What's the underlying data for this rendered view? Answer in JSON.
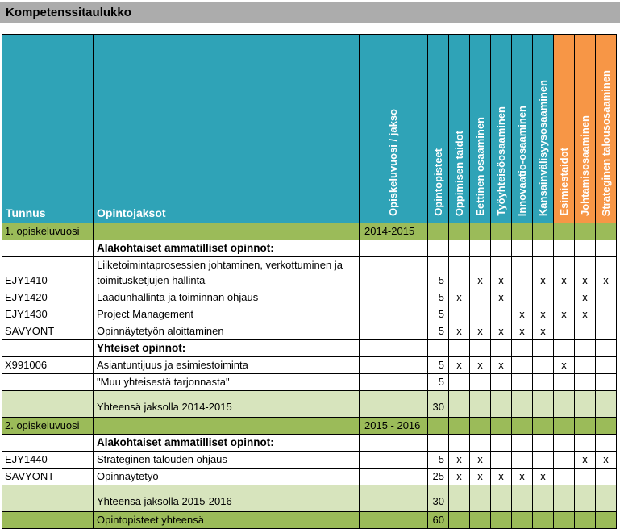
{
  "title": "Kompetenssitaulukko",
  "colors": {
    "header_teal": "#2fa3b7",
    "header_orange": "#f79646",
    "section_olive_green": "#9bbb59",
    "total_light_green": "#d7e4bd",
    "title_bar_gray": "#acacac",
    "grid_black": "#000000",
    "header_text_white": "#ffffff",
    "body_text_black": "#000000"
  },
  "table": {
    "corner_headers": [
      {
        "label": "Tunnus"
      },
      {
        "label": "Opintojaksot"
      }
    ],
    "rotated_headers": [
      {
        "label": "Opiskeluvuosi / jakso",
        "group": "teal"
      },
      {
        "label": "Opintopisteet",
        "group": "teal"
      },
      {
        "label": "Oppimisen taidot",
        "group": "teal"
      },
      {
        "label": "Eettinen osaaminen",
        "group": "teal"
      },
      {
        "label": "Työyhteisöosaaminen",
        "group": "teal"
      },
      {
        "label": "Innovaatio-osaaminen",
        "group": "teal"
      },
      {
        "label": "Kansainvälisyysosaaminen",
        "group": "teal"
      },
      {
        "label": "Esimiestaidot",
        "group": "orange"
      },
      {
        "label": "Johtamisosaaminen",
        "group": "orange"
      },
      {
        "label": "Strateginen talousosaaminen",
        "group": "orange"
      }
    ],
    "rows": [
      {
        "type": "section",
        "tunnus": "1. opiskeluvuosi",
        "name": "",
        "period": "2014-2015",
        "points": "",
        "marks": [
          "",
          "",
          "",
          "",
          "",
          "",
          "",
          ""
        ]
      },
      {
        "type": "subheader",
        "tunnus": "",
        "name": "Alakohtaiset ammatilliset opinnot:",
        "period": "",
        "points": "",
        "marks": [
          "",
          "",
          "",
          "",
          "",
          "",
          "",
          ""
        ]
      },
      {
        "type": "course",
        "tall": true,
        "tunnus": "EJY1410",
        "name": "Liiketoimintaprosessien johtaminen, verkottuminen ja toimitusketjujen hallinta",
        "period": "",
        "points": "5",
        "marks": [
          "",
          "x",
          "x",
          "",
          "x",
          "x",
          "x",
          "x"
        ]
      },
      {
        "type": "course",
        "tunnus": "EJY1420",
        "name": "Laadunhallinta ja toiminnan ohjaus",
        "period": "",
        "points": "5",
        "marks": [
          "x",
          "",
          "x",
          "",
          "",
          "",
          "x",
          ""
        ]
      },
      {
        "type": "course",
        "tunnus": "EJY1430",
        "name": "Project Management",
        "period": "",
        "points": "5",
        "marks": [
          "",
          "",
          "",
          "x",
          "x",
          "x",
          "x",
          ""
        ]
      },
      {
        "type": "course",
        "tunnus": "SAVYONT",
        "name": "Opinnäytetyön aloittaminen",
        "period": "",
        "points": "5",
        "marks": [
          "x",
          "x",
          "x",
          "x",
          "x",
          "",
          "",
          ""
        ]
      },
      {
        "type": "subheader",
        "tunnus": "",
        "name": "Yhteiset opinnot:",
        "period": "",
        "points": "",
        "marks": [
          "",
          "",
          "",
          "",
          "",
          "",
          "",
          ""
        ]
      },
      {
        "type": "course",
        "tunnus": "X991006",
        "name": "Asiantuntijuus ja esimiestoiminta",
        "period": "",
        "points": "5",
        "marks": [
          "x",
          "x",
          "x",
          "",
          "",
          "x",
          "",
          ""
        ]
      },
      {
        "type": "course",
        "tunnus": "",
        "name": "\"Muu yhteisestä tarjonnasta\"",
        "period": "",
        "points": "5",
        "marks": [
          "",
          "",
          "",
          "",
          "",
          "",
          "",
          ""
        ]
      },
      {
        "type": "total",
        "tunnus": "",
        "name": "Yhteensä jaksolla 2014-2015",
        "period": "",
        "points": "30",
        "marks": [
          "",
          "",
          "",
          "",
          "",
          "",
          "",
          ""
        ]
      },
      {
        "type": "section",
        "tunnus": "2. opiskeluvuosi",
        "name": "",
        "period": "2015 - 2016",
        "points": "",
        "marks": [
          "",
          "",
          "",
          "",
          "",
          "",
          "",
          ""
        ]
      },
      {
        "type": "subheader",
        "tunnus": "",
        "name": "Alakohtaiset ammatilliset opinnot:",
        "period": "",
        "points": "",
        "marks": [
          "",
          "",
          "",
          "",
          "",
          "",
          "",
          ""
        ]
      },
      {
        "type": "course",
        "tunnus": "EJY1440",
        "name": "Strateginen talouden ohjaus",
        "period": "",
        "points": "5",
        "marks": [
          "x",
          "x",
          "",
          "",
          "",
          "",
          "x",
          "x"
        ]
      },
      {
        "type": "course",
        "tunnus": "SAVYONT",
        "name": "Opinnäytetyö",
        "period": "",
        "points": "25",
        "marks": [
          "x",
          "x",
          "x",
          "x",
          "x",
          "",
          "",
          ""
        ]
      },
      {
        "type": "total",
        "tunnus": "",
        "name": "Yhteensä jaksolla 2015-2016",
        "period": "",
        "points": "30",
        "marks": [
          "",
          "",
          "",
          "",
          "",
          "",
          "",
          ""
        ]
      },
      {
        "type": "gtotal",
        "tunnus": "",
        "name": "Opintopisteet yhteensä",
        "period": "",
        "points": "60",
        "marks": [
          "",
          "",
          "",
          "",
          "",
          "",
          "",
          ""
        ]
      }
    ]
  }
}
